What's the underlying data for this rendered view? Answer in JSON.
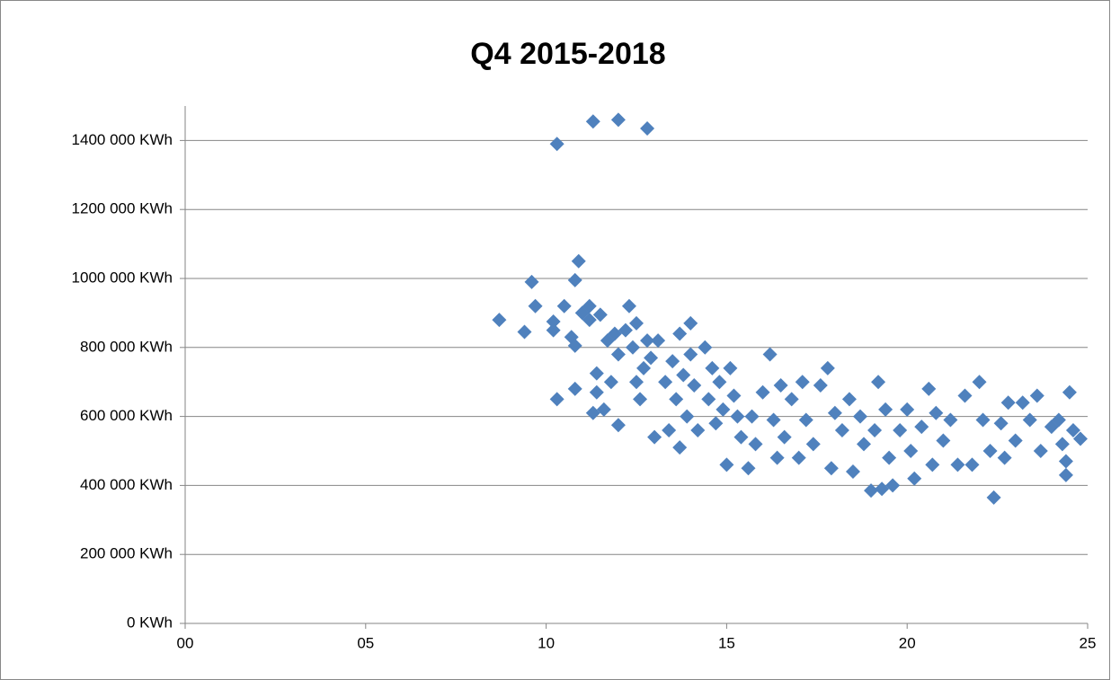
{
  "chart_data": {
    "type": "scatter",
    "title": "Q4 2015-2018",
    "xlim": [
      0,
      25
    ],
    "xticks": [
      {
        "value": 0,
        "label": "00"
      },
      {
        "value": 5,
        "label": "05"
      },
      10,
      15,
      20,
      25
    ],
    "ylim": [
      0,
      1500000
    ],
    "yticks": [
      {
        "value": 0,
        "label": "0 KWh"
      },
      {
        "value": 200000,
        "label": "200 000 KWh"
      },
      {
        "value": 400000,
        "label": "400 000 KWh"
      },
      {
        "value": 600000,
        "label": "600 000 KWh"
      },
      {
        "value": 800000,
        "label": "800 000 KWh"
      },
      {
        "value": 1000000,
        "label": "1000 000 KWh"
      },
      {
        "value": 1200000,
        "label": "1200 000 KWh"
      },
      {
        "value": 1400000,
        "label": "1400 000 KWh"
      }
    ],
    "grid": true,
    "series": [
      {
        "color": "#4f81bd",
        "x": [
          8.7,
          9.4,
          9.6,
          9.7,
          10.2,
          10.2,
          10.3,
          10.3,
          10.5,
          10.7,
          10.8,
          10.8,
          10.8,
          11.0,
          11.2,
          11.2,
          11.3,
          11.3,
          11.4,
          11.4,
          11.5,
          10.9,
          11.6,
          11.7,
          11.8,
          11.9,
          12.0,
          12.0,
          12.0,
          12.2,
          12.3,
          12.4,
          12.5,
          12.5,
          12.6,
          12.7,
          12.8,
          12.8,
          12.9,
          13.0,
          13.1,
          13.3,
          13.4,
          13.5,
          13.6,
          13.7,
          13.7,
          13.8,
          13.9,
          14.0,
          14.0,
          14.1,
          14.2,
          14.4,
          14.5,
          14.6,
          14.7,
          14.8,
          14.9,
          15.0,
          15.1,
          15.2,
          15.3,
          15.4,
          15.6,
          15.7,
          15.8,
          16.0,
          16.2,
          16.3,
          16.4,
          16.5,
          16.6,
          16.8,
          17.0,
          17.1,
          17.2,
          17.4,
          17.6,
          17.8,
          17.9,
          18.0,
          18.2,
          18.4,
          18.5,
          18.7,
          18.8,
          19.0,
          19.1,
          19.2,
          19.3,
          19.4,
          19.5,
          19.6,
          19.8,
          20.0,
          20.1,
          20.2,
          20.4,
          20.6,
          20.7,
          20.8,
          21.0,
          21.2,
          21.4,
          21.6,
          21.8,
          22.0,
          22.1,
          22.3,
          22.4,
          22.6,
          22.7,
          22.8,
          23.0,
          23.2,
          23.4,
          23.6,
          23.7,
          24.0,
          24.2,
          24.3,
          24.4,
          24.4,
          24.5,
          24.6,
          24.8
        ],
        "values": [
          880000,
          845000,
          990000,
          920000,
          850000,
          875000,
          650000,
          1390000,
          920000,
          830000,
          995000,
          805000,
          680000,
          900000,
          880000,
          920000,
          1455000,
          610000,
          725000,
          670000,
          895000,
          1050000,
          620000,
          820000,
          700000,
          840000,
          1460000,
          780000,
          575000,
          850000,
          920000,
          800000,
          870000,
          700000,
          650000,
          740000,
          1435000,
          820000,
          770000,
          540000,
          820000,
          700000,
          560000,
          760000,
          650000,
          840000,
          510000,
          720000,
          600000,
          870000,
          780000,
          690000,
          560000,
          800000,
          650000,
          740000,
          580000,
          700000,
          620000,
          460000,
          740000,
          660000,
          600000,
          540000,
          450000,
          600000,
          520000,
          670000,
          780000,
          590000,
          480000,
          690000,
          540000,
          650000,
          480000,
          700000,
          590000,
          520000,
          690000,
          740000,
          450000,
          610000,
          560000,
          650000,
          440000,
          600000,
          520000,
          385000,
          560000,
          700000,
          390000,
          620000,
          480000,
          400000,
          560000,
          620000,
          500000,
          420000,
          570000,
          680000,
          460000,
          610000,
          530000,
          590000,
          460000,
          660000,
          460000,
          700000,
          590000,
          500000,
          365000,
          580000,
          480000,
          640000,
          530000,
          640000,
          590000,
          660000,
          500000,
          570000,
          590000,
          520000,
          430000,
          470000,
          670000,
          560000,
          535000
        ]
      }
    ]
  }
}
